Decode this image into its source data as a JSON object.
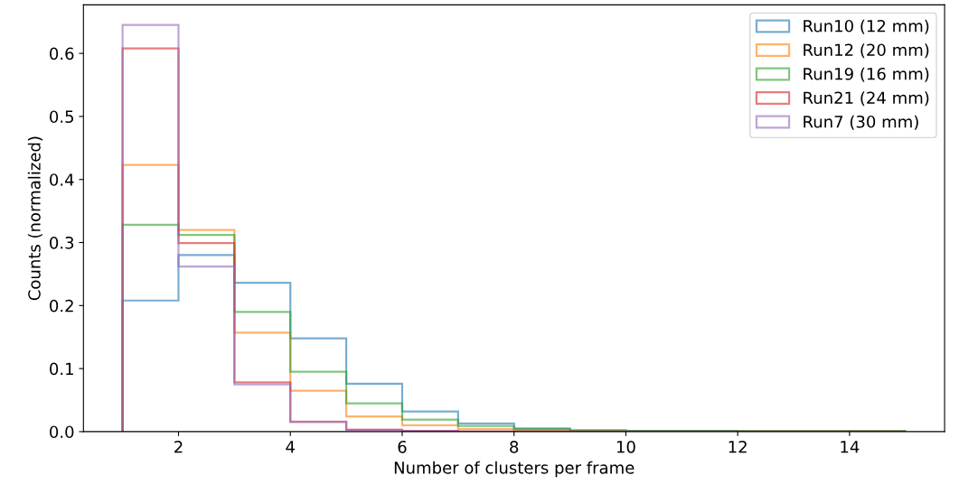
{
  "chart_data": {
    "type": "histogram",
    "xlabel": "Number of clusters per frame",
    "ylabel": "Counts (normalized)",
    "bins": [
      1,
      2,
      3,
      4,
      5,
      6,
      7,
      8,
      9,
      10,
      11,
      12,
      13,
      14,
      15
    ],
    "series": [
      {
        "name": "Run10 (12 mm)",
        "color": "#1f77b4",
        "values": [
          0.208,
          0.28,
          0.236,
          0.148,
          0.076,
          0.032,
          0.013,
          0.005,
          0.002,
          0.001,
          0.001,
          0,
          0,
          0
        ]
      },
      {
        "name": "Run12 (20 mm)",
        "color": "#ff7f0e",
        "values": [
          0.423,
          0.32,
          0.157,
          0.065,
          0.024,
          0.01,
          0.004,
          0.002,
          0.001,
          0,
          0,
          0,
          0,
          0
        ]
      },
      {
        "name": "Run19 (16 mm)",
        "color": "#2ca02c",
        "values": [
          0.328,
          0.312,
          0.19,
          0.095,
          0.045,
          0.019,
          0.009,
          0.004,
          0.002,
          0.001,
          0.001,
          0.001,
          0.001,
          0.001
        ]
      },
      {
        "name": "Run21 (24 mm)",
        "color": "#d62728",
        "values": [
          0.608,
          0.299,
          0.078,
          0.016,
          0.003,
          0.001,
          0,
          0,
          0,
          0,
          0,
          0,
          0,
          0
        ]
      },
      {
        "name": "Run7 (30 mm)",
        "color": "#9467bd",
        "values": [
          0.645,
          0.262,
          0.075,
          0.015,
          0.003,
          0.001,
          0,
          0,
          0,
          0,
          0,
          0,
          0,
          0
        ]
      }
    ],
    "xlim": [
      0.3,
      15.7
    ],
    "xticks": [
      2,
      4,
      6,
      8,
      10,
      12,
      14
    ],
    "ylim": [
      0,
      0.677
    ],
    "yticks": [
      {
        "value": 0,
        "label": "0.0"
      },
      0.1,
      0.2,
      0.3,
      0.4,
      0.5,
      0.6
    ],
    "legend": "top right",
    "grid": false
  }
}
